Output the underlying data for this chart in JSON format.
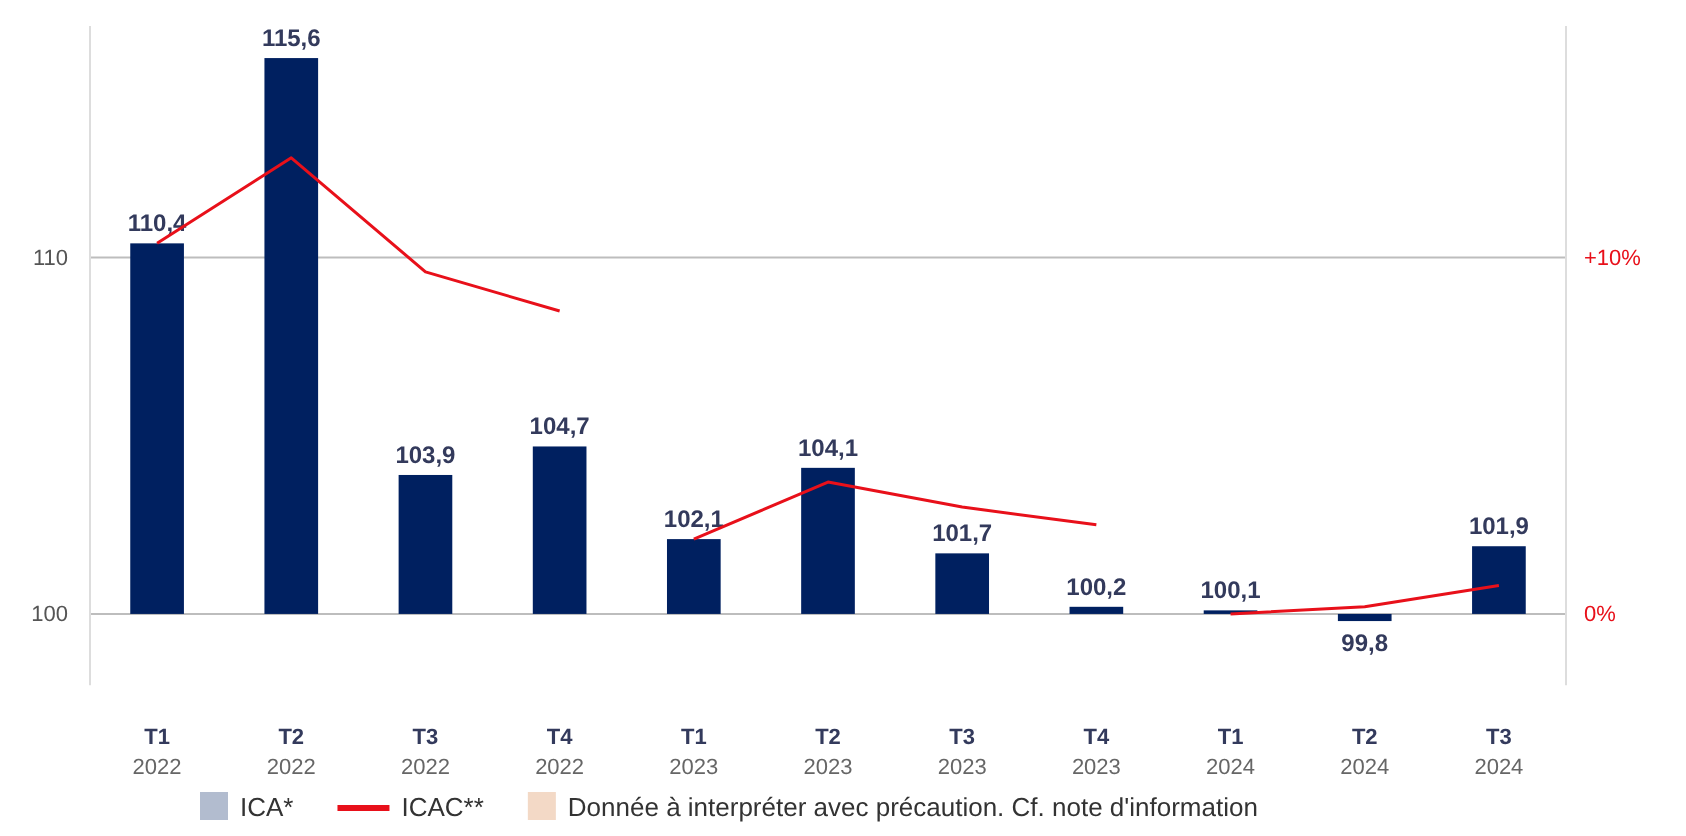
{
  "chart_data": {
    "type": "bar",
    "categories": [
      "T1 2022",
      "T2 2022",
      "T3 2022",
      "T4 2022",
      "T1 2023",
      "T2 2023",
      "T3 2023",
      "T4 2023",
      "T1 2024",
      "T2 2024",
      "T3 2024"
    ],
    "series": [
      {
        "name": "ICA*",
        "color": "#002060",
        "base": [
          100,
          100,
          100,
          100,
          100,
          100,
          100,
          100,
          100,
          100,
          100
        ],
        "values": [
          10.4,
          15.6,
          3.9,
          4.7,
          2.1,
          4.1,
          1.7,
          0.2,
          0.1,
          -0.2,
          1.9
        ],
        "value_labels": [
          "110,4",
          "115,6",
          "103,9",
          "104,7",
          "102,1",
          "104,1",
          "101,7",
          "100,2",
          "100,1",
          "99,8",
          "101,9"
        ]
      },
      {
        "name": "ICAC**",
        "type": "line",
        "axis": "y2",
        "color": "#e8101a",
        "values": [
          10.4,
          12.8,
          9.6,
          8.5,
          null,
          null,
          null,
          null,
          null,
          null,
          null
        ]
      },
      {
        "type": "line",
        "axis": "y2",
        "color": "#e8101a",
        "values": [
          null,
          null,
          null,
          null,
          2.1,
          3.7,
          3.0,
          2.5,
          null,
          null,
          null
        ]
      },
      {
        "type": "line",
        "axis": "y2",
        "color": "#e8101a",
        "values": [
          null,
          null,
          null,
          null,
          null,
          null,
          null,
          null,
          0.0,
          0.2,
          0.8
        ]
      }
    ],
    "ylim": [
      98,
      116.5
    ],
    "yticks": [
      100,
      110
    ],
    "y2lim": [
      -2,
      16.5
    ],
    "y2ticks": [
      {
        "value": 0,
        "label": "0%"
      },
      {
        "value": 10,
        "label": "+10%"
      }
    ],
    "grid": "y",
    "legend": "bottom",
    "annotations": [
      "Donnée à interpréter avec précaution. Cf. note d'information"
    ]
  }
}
